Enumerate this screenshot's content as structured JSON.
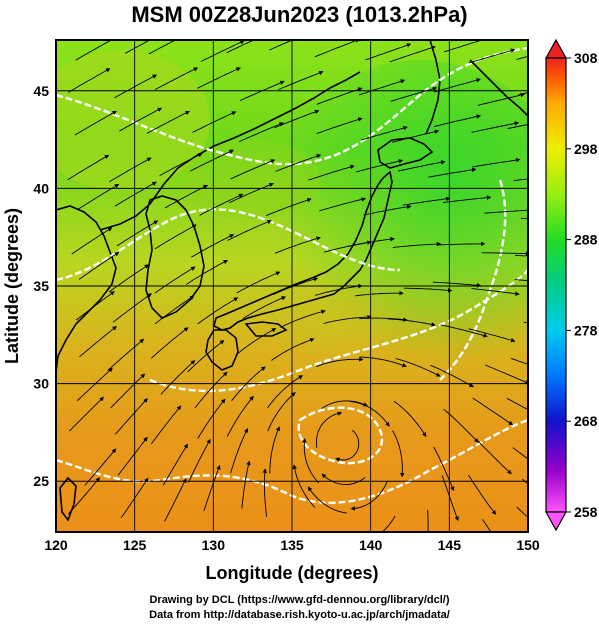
{
  "title": "MSM 00Z28Jun2023 (1013.2hPa)",
  "xaxis": {
    "label": "Longitude (degrees)",
    "ticks": [
      "120",
      "125",
      "130",
      "135",
      "140",
      "145",
      "150"
    ],
    "range": [
      120,
      150
    ]
  },
  "yaxis": {
    "label": "Latitude  (degrees)",
    "ticks": [
      "25",
      "30",
      "35",
      "40",
      "45"
    ],
    "range": [
      22.4,
      47.6
    ]
  },
  "colorbar": {
    "ticks": [
      "308",
      "298",
      "288",
      "278",
      "268",
      "258"
    ],
    "range": [
      258,
      308
    ],
    "colors": [
      "#ff55ff",
      "#9900cc",
      "#1111cc",
      "#0077ff",
      "#00ccee",
      "#00cc88",
      "#22dd22",
      "#99ee11",
      "#eeee00",
      "#ffaa00",
      "#ff5500",
      "#ee2222"
    ]
  },
  "credits": {
    "line1": "Drawing by DCL (https://www.gfd-dennou.org/library/dcl/)",
    "line2": "Data from http://database.rish.kyoto-u.ac.jp/arch/jmadata/"
  }
}
